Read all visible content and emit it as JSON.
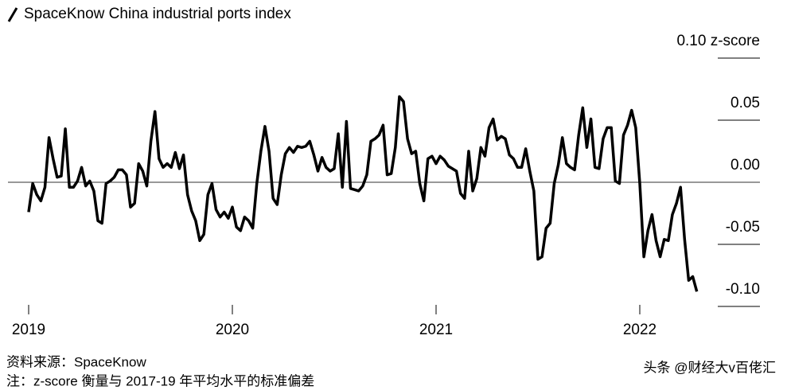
{
  "chart_data": {
    "type": "line",
    "title": "SpaceKnow China industrial ports index",
    "source": "资料来源：SpaceKnow",
    "note": "注：z-score 衡量与 2017-19 年平均水平的标准偏差",
    "watermark": "头条 @财经大v百佬汇",
    "x": [
      2019,
      2019.02,
      2019.04,
      2019.06,
      2019.08,
      2019.1,
      2019.12,
      2019.14,
      2019.16,
      2019.18,
      2019.2,
      2019.22,
      2019.24,
      2019.26,
      2019.28,
      2019.3,
      2019.32,
      2019.34,
      2019.36,
      2019.38,
      2019.4,
      2019.42,
      2019.44,
      2019.46,
      2019.48,
      2019.5,
      2019.52,
      2019.54,
      2019.56,
      2019.58,
      2019.6,
      2019.62,
      2019.64,
      2019.66,
      2019.68,
      2019.7,
      2019.72,
      2019.74,
      2019.76,
      2019.78,
      2019.8,
      2019.82,
      2019.84,
      2019.86,
      2019.88,
      2019.9,
      2019.92,
      2019.94,
      2019.96,
      2019.98,
      2020,
      2020.02,
      2020.04,
      2020.06,
      2020.08,
      2020.1,
      2020.12,
      2020.14,
      2020.16,
      2020.18,
      2020.2,
      2020.22,
      2020.24,
      2020.26,
      2020.28,
      2020.3,
      2020.32,
      2020.34,
      2020.36,
      2020.38,
      2020.4,
      2020.42,
      2020.44,
      2020.46,
      2020.48,
      2020.5,
      2020.52,
      2020.54,
      2020.56,
      2020.58,
      2020.6,
      2020.62,
      2020.64,
      2020.66,
      2020.68,
      2020.7,
      2020.72,
      2020.74,
      2020.76,
      2020.78,
      2020.8,
      2020.82,
      2020.84,
      2020.86,
      2020.88,
      2020.9,
      2020.92,
      2020.94,
      2020.96,
      2020.98,
      2021,
      2021.02,
      2021.04,
      2021.06,
      2021.08,
      2021.1,
      2021.12,
      2021.14,
      2021.16,
      2021.18,
      2021.2,
      2021.22,
      2021.24,
      2021.26,
      2021.28,
      2021.3,
      2021.32,
      2021.34,
      2021.36,
      2021.38,
      2021.4,
      2021.42,
      2021.44,
      2021.46,
      2021.48,
      2021.5,
      2021.52,
      2021.54,
      2021.56,
      2021.58,
      2021.6,
      2021.62,
      2021.64,
      2021.66,
      2021.68,
      2021.7,
      2021.72,
      2021.74,
      2021.76,
      2021.78,
      2021.8,
      2021.82,
      2021.84,
      2021.86,
      2021.88,
      2021.9,
      2021.92,
      2021.94,
      2021.96,
      2021.98,
      2022,
      2022.02,
      2022.04,
      2022.06,
      2022.08,
      2022.1,
      2022.12,
      2022.14,
      2022.16,
      2022.18,
      2022.2,
      2022.22,
      2022.24,
      2022.26,
      2022.28
    ],
    "series": [
      {
        "color": "#000000",
        "values": [
          -0.024,
          -0.001,
          -0.01,
          -0.015,
          -0.004,
          0.036,
          0.019,
          0.004,
          0.005,
          0.043,
          -0.004,
          -0.004,
          0.001,
          0.012,
          -0.003,
          0.001,
          -0.007,
          -0.031,
          -0.033,
          -0.001,
          0.001,
          0.004,
          0.01,
          0.01,
          0.006,
          -0.02,
          -0.017,
          0.015,
          0.009,
          -0.003,
          0.033,
          0.057,
          0.019,
          0.012,
          0.015,
          0.012,
          0.024,
          0.011,
          0.022,
          -0.01,
          -0.023,
          -0.031,
          -0.047,
          -0.042,
          -0.01,
          -0.001,
          -0.022,
          -0.028,
          -0.024,
          -0.029,
          -0.02,
          -0.036,
          -0.039,
          -0.028,
          -0.031,
          -0.037,
          -0.001,
          0.025,
          0.045,
          0.025,
          -0.013,
          -0.018,
          0.006,
          0.023,
          0.028,
          0.024,
          0.029,
          0.028,
          0.029,
          0.033,
          0.022,
          0.009,
          0.02,
          0.012,
          0.009,
          0.011,
          0.039,
          -0.004,
          0.049,
          -0.005,
          -0.006,
          -0.007,
          -0.003,
          0.006,
          0.033,
          0.035,
          0.038,
          0.046,
          0.006,
          0.007,
          0.028,
          0.069,
          0.065,
          0.035,
          0.023,
          0.025,
          -0.001,
          -0.015,
          0.019,
          0.021,
          0.015,
          0.021,
          0.018,
          0.013,
          0.011,
          0.009,
          -0.009,
          -0.013,
          0.025,
          -0.007,
          0.003,
          0.028,
          0.021,
          0.044,
          0.051,
          0.034,
          0.037,
          0.035,
          0.022,
          0.019,
          0.012,
          0.012,
          0.027,
          0.009,
          -0.007,
          -0.062,
          -0.06,
          -0.037,
          -0.033,
          -0.001,
          0.014,
          0.036,
          0.015,
          0.012,
          0.01,
          0.038,
          0.06,
          0.028,
          0.051,
          0.012,
          0.011,
          0.035,
          0.044,
          0.044,
          0.001,
          -0.001,
          0.038,
          0.046,
          0.058,
          0.044,
          -0.001,
          -0.06,
          -0.039,
          -0.026,
          -0.047,
          -0.06,
          -0.046,
          -0.047,
          -0.026,
          -0.017,
          -0.004,
          -0.046,
          -0.079,
          -0.076,
          -0.088
        ]
      }
    ],
    "xlim": [
      2019,
      2022.5
    ],
    "xticks": [
      2019,
      2020,
      2021,
      2022
    ],
    "ylim": [
      -0.1,
      0.1
    ],
    "yticks": [
      {
        "value": -0.1,
        "label": "-0.10"
      },
      {
        "value": -0.05,
        "label": "-0.05"
      },
      {
        "value": 0,
        "label": "0.00"
      },
      {
        "value": 0.05,
        "label": "0.05"
      },
      {
        "value": 0.1,
        "label": "0.10 z-score"
      }
    ]
  }
}
